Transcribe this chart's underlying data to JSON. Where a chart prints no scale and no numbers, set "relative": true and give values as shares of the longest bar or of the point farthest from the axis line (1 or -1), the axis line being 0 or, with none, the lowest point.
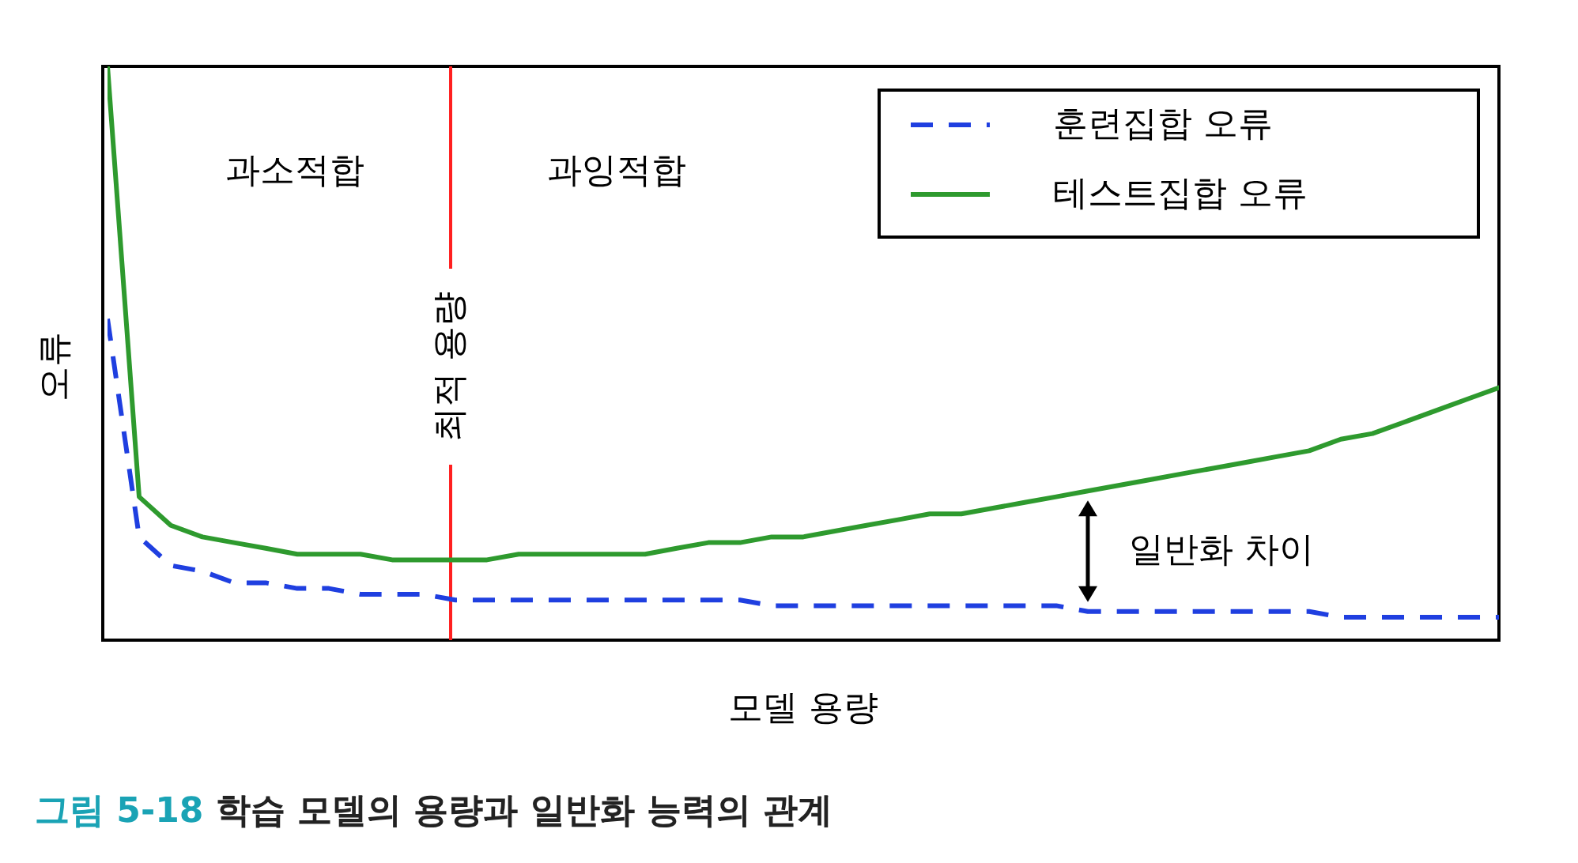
{
  "chart_data": {
    "type": "line",
    "relative": true,
    "legend": "top right",
    "xlabel": "모델 용량",
    "ylabel": "오류",
    "categories": [
      null,
      null,
      null,
      null,
      null,
      null,
      null,
      null,
      null,
      null,
      null,
      null,
      null,
      null,
      null,
      null,
      null,
      null,
      null,
      null,
      null,
      null,
      null,
      null,
      null,
      null,
      null,
      null,
      null,
      null,
      null,
      null,
      null,
      null,
      null,
      null,
      null,
      null,
      null,
      null,
      null,
      null,
      null,
      null,
      null
    ],
    "series": [
      {
        "name": "훈련집합 오류",
        "color": "#1f3fe0",
        "line_style": "dashed",
        "values": [
          0.56,
          0.18,
          0.13,
          0.12,
          0.1,
          0.1,
          0.09,
          0.09,
          0.08,
          0.08,
          0.08,
          0.07,
          0.07,
          0.07,
          0.07,
          0.07,
          0.07,
          0.07,
          0.07,
          0.07,
          0.07,
          0.06,
          0.06,
          0.06,
          0.06,
          0.06,
          0.06,
          0.06,
          0.06,
          0.06,
          0.06,
          0.05,
          0.05,
          0.05,
          0.05,
          0.05,
          0.05,
          0.05,
          0.05,
          0.04,
          0.04,
          0.04,
          0.04,
          0.04,
          0.04
        ]
      },
      {
        "name": "테스트집합 오류",
        "color": "#2e9a2e",
        "line_style": "solid",
        "values": [
          1,
          0.25,
          0.2,
          0.18,
          0.17,
          0.16,
          0.15,
          0.15,
          0.15,
          0.14,
          0.14,
          0.14,
          0.14,
          0.15,
          0.15,
          0.15,
          0.15,
          0.15,
          0.16,
          0.17,
          0.17,
          0.18,
          0.18,
          0.19,
          0.2,
          0.21,
          0.22,
          0.22,
          0.23,
          0.24,
          0.25,
          0.26,
          0.27,
          0.28,
          0.29,
          0.3,
          0.31,
          0.32,
          0.33,
          0.35,
          0.36,
          0.38,
          0.4,
          0.42,
          0.44
        ]
      }
    ],
    "annotations": [
      "과소적합",
      "과잉적합",
      "일반화 차이",
      "그림 5-18 학습 모델의 용량과 일반화 능력의 관계",
      "최적 용량"
    ]
  }
}
